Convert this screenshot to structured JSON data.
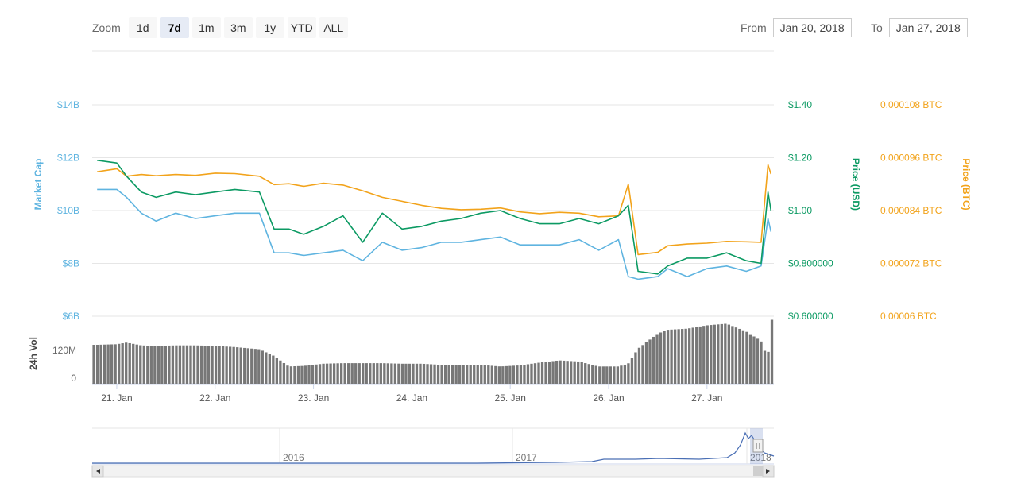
{
  "toolbar": {
    "zoom_label": "Zoom",
    "buttons": [
      "1d",
      "7d",
      "1m",
      "3m",
      "1y",
      "YTD",
      "ALL"
    ],
    "active": "7d",
    "from_label": "From",
    "from_value": "Jan 20, 2018",
    "to_label": "To",
    "to_value": "Jan 27, 2018"
  },
  "colors": {
    "market_cap": "#5fb4e0",
    "price_usd": "#0c9a63",
    "price_btc": "#f2a31b",
    "volume": "#777777",
    "navigator": "#4a6fb5"
  },
  "chart_data": {
    "type": "line",
    "x_ticks": [
      "21. Jan",
      "22. Jan",
      "23. Jan",
      "24. Jan",
      "25. Jan",
      "26. Jan",
      "27. Jan"
    ],
    "axes": {
      "market_cap": {
        "label": "Market Cap",
        "ticks": [
          "$6B",
          "$8B",
          "$10B",
          "$12B",
          "$14B"
        ],
        "ylim": [
          6,
          14
        ]
      },
      "price_usd": {
        "label": "Price (USD)",
        "ticks": [
          "$0.600000",
          "$0.800000",
          "$1.00",
          "$1.20",
          "$1.40"
        ],
        "ylim": [
          0.6,
          1.4
        ]
      },
      "price_btc": {
        "label": "Price (BTC)",
        "ticks": [
          "0.00006 BTC",
          "0.000072 BTC",
          "0.000084 BTC",
          "0.000096 BTC",
          "0.000108 BTC"
        ],
        "ylim": [
          6e-05,
          0.000108
        ]
      },
      "volume": {
        "label": "24h Vol",
        "ticks": [
          "0",
          "120M"
        ],
        "ylim": [
          0,
          240
        ]
      }
    },
    "x": [
      20.8,
      21.0,
      21.1,
      21.25,
      21.4,
      21.6,
      21.8,
      22.0,
      22.2,
      22.45,
      22.6,
      22.75,
      22.9,
      23.1,
      23.3,
      23.5,
      23.7,
      23.9,
      24.1,
      24.3,
      24.5,
      24.7,
      24.9,
      25.1,
      25.3,
      25.5,
      25.7,
      25.9,
      26.1,
      26.2,
      26.3,
      26.5,
      26.6,
      26.8,
      27.0,
      27.2,
      27.4,
      27.55,
      27.62,
      27.65
    ],
    "series": [
      {
        "name": "Market Cap",
        "unit": "B USD",
        "values": [
          10.8,
          10.8,
          10.5,
          9.9,
          9.6,
          9.9,
          9.7,
          9.8,
          9.9,
          9.9,
          8.4,
          8.4,
          8.3,
          8.4,
          8.5,
          8.1,
          8.8,
          8.5,
          8.6,
          8.8,
          8.8,
          8.9,
          9.0,
          8.7,
          8.7,
          8.7,
          8.9,
          8.5,
          8.9,
          7.5,
          7.4,
          7.5,
          7.8,
          7.5,
          7.8,
          7.9,
          7.7,
          7.9,
          9.7,
          9.2
        ]
      },
      {
        "name": "Price (USD)",
        "unit": "USD",
        "values": [
          1.19,
          1.18,
          1.13,
          1.07,
          1.05,
          1.07,
          1.06,
          1.07,
          1.08,
          1.07,
          0.93,
          0.93,
          0.91,
          0.94,
          0.98,
          0.88,
          0.99,
          0.93,
          0.94,
          0.96,
          0.97,
          0.99,
          1.0,
          0.97,
          0.95,
          0.95,
          0.97,
          0.95,
          0.98,
          1.02,
          0.77,
          0.76,
          0.79,
          0.82,
          0.82,
          0.84,
          0.81,
          0.8,
          1.07,
          1.0
        ]
      },
      {
        "name": "Price (BTC)",
        "unit": "BTC",
        "values": [
          9.28e-05,
          9.35e-05,
          9.18e-05,
          9.22e-05,
          9.19e-05,
          9.22e-05,
          9.2e-05,
          9.25e-05,
          9.24e-05,
          9.18e-05,
          8.99e-05,
          9.01e-05,
          8.95e-05,
          9.02e-05,
          8.98e-05,
          8.85e-05,
          8.7e-05,
          8.61e-05,
          8.52e-05,
          8.45e-05,
          8.42e-05,
          8.43e-05,
          8.46e-05,
          8.37e-05,
          8.33e-05,
          8.36e-05,
          8.34e-05,
          8.26e-05,
          8.28e-05,
          9e-05,
          7.4e-05,
          7.45e-05,
          7.6e-05,
          7.64e-05,
          7.66e-05,
          7.7e-05,
          7.69e-05,
          7.68e-05,
          9.44e-05,
          9.23e-05
        ]
      },
      {
        "name": "24h Vol",
        "unit": "M USD",
        "values": [
          140,
          142,
          148,
          138,
          136,
          138,
          138,
          136,
          132,
          124,
          100,
          62,
          64,
          72,
          74,
          74,
          74,
          72,
          72,
          68,
          68,
          68,
          62,
          66,
          76,
          84,
          80,
          62,
          62,
          72,
          126,
          180,
          194,
          198,
          210,
          216,
          188,
          154,
          90,
          230
        ]
      }
    ],
    "navigator": {
      "ticks": [
        "2016",
        "2017",
        "2018"
      ]
    }
  }
}
